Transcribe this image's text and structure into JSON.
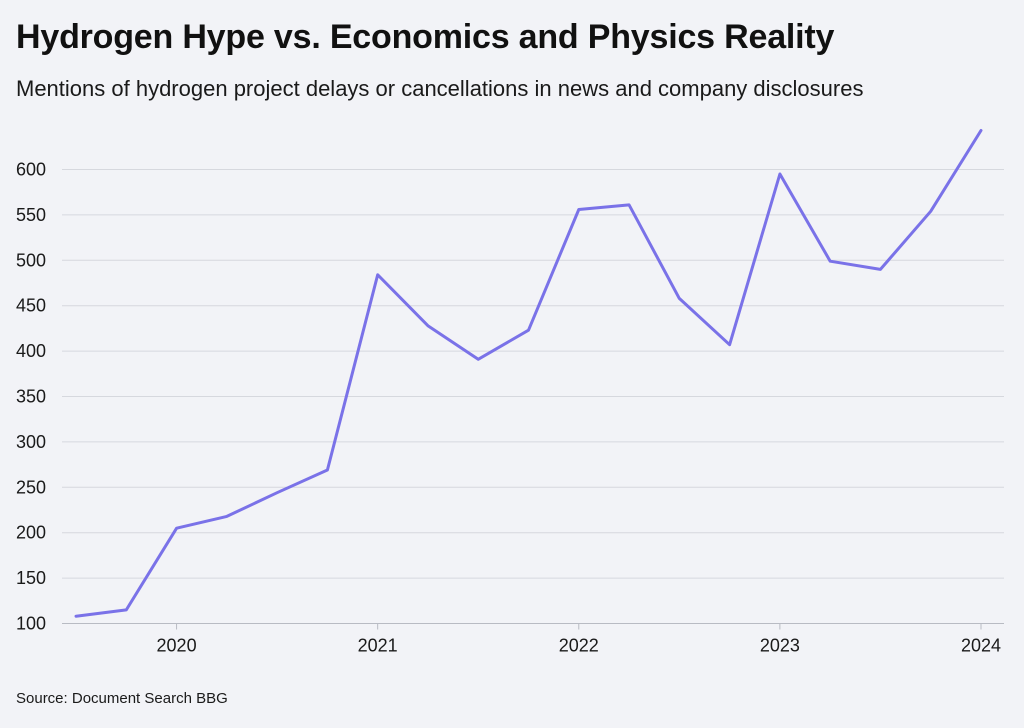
{
  "chart_data": {
    "type": "line",
    "title": "Hydrogen Hype vs. Economics and Physics Reality",
    "subtitle": "Mentions of hydrogen project delays or cancellations in news and company disclosures",
    "source": "Source: Document Search BBG",
    "xlabel": "",
    "ylabel": "",
    "xlim": [
      2019.5,
      2024.1
    ],
    "ylim": [
      100,
      650
    ],
    "yticks": [
      100,
      150,
      200,
      250,
      300,
      350,
      400,
      450,
      500,
      550,
      600
    ],
    "xticks": [
      2020,
      2021,
      2022,
      2023,
      2024
    ],
    "grid": true,
    "color": "#7a72e8",
    "series": [
      {
        "name": "Mentions",
        "x": [
          2019.5,
          2019.75,
          2020.0,
          2020.25,
          2020.5,
          2020.75,
          2021.0,
          2021.25,
          2021.5,
          2021.75,
          2022.0,
          2022.25,
          2022.5,
          2022.75,
          2023.0,
          2023.25,
          2023.5,
          2023.75,
          2024.0
        ],
        "values": [
          108,
          115,
          205,
          218,
          244,
          269,
          484,
          428,
          391,
          423,
          556,
          561,
          458,
          407,
          595,
          499,
          490,
          554,
          643
        ]
      }
    ]
  }
}
